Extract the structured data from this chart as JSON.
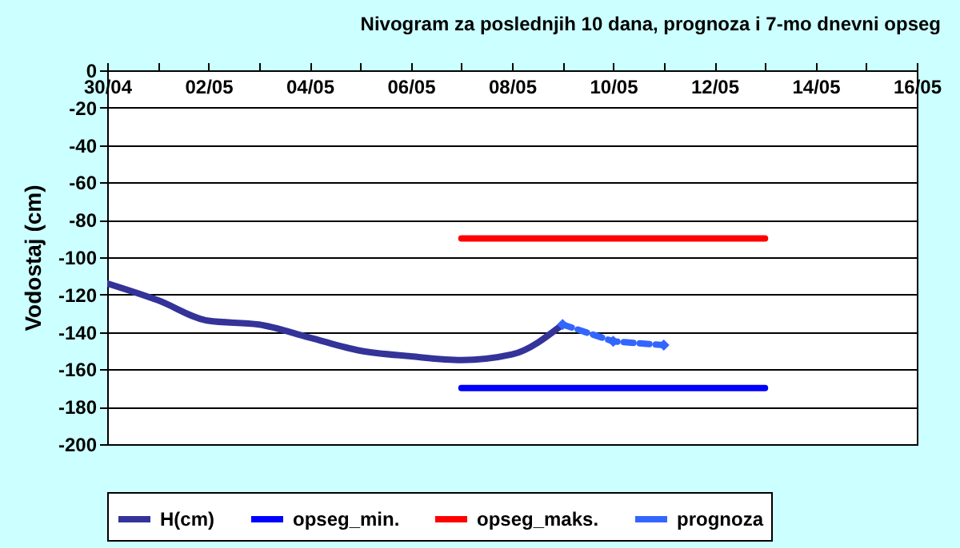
{
  "chart_data": {
    "type": "line",
    "title": "Nivogram za poslednjih 10 dana, prognoza i 7-mo dnevni opseg",
    "ylabel": "Vodostaj (cm)",
    "xlim": [
      "--04-30",
      "--05-16"
    ],
    "xticks": [
      {
        "value": "--04-30",
        "label": "30/04"
      },
      {
        "value": "--05-01",
        "label": null
      },
      {
        "value": "--05-02",
        "label": "02/05"
      },
      {
        "value": "--05-03",
        "label": null
      },
      {
        "value": "--05-04",
        "label": "04/05"
      },
      {
        "value": "--05-05",
        "label": null
      },
      {
        "value": "--05-06",
        "label": "06/05"
      },
      {
        "value": "--05-07",
        "label": null
      },
      {
        "value": "--05-08",
        "label": "08/05"
      },
      {
        "value": "--05-09",
        "label": null
      },
      {
        "value": "--05-10",
        "label": "10/05"
      },
      {
        "value": "--05-11",
        "label": null
      },
      {
        "value": "--05-12",
        "label": "12/05"
      },
      {
        "value": "--05-13",
        "label": null
      },
      {
        "value": "--05-14",
        "label": "14/05"
      },
      {
        "value": "--05-15",
        "label": null
      },
      {
        "value": "--05-16",
        "label": "16/05"
      }
    ],
    "ylim": [
      -200,
      0
    ],
    "yticks": [
      -200,
      -180,
      -160,
      -140,
      -120,
      -100,
      -80,
      -60,
      -40,
      -20,
      0
    ],
    "grid": "y",
    "legend": "bottom",
    "series": [
      {
        "name": "H(cm)",
        "color": "#333399",
        "x": [
          "--04-30",
          "--05-01",
          "--05-02",
          "--05-03",
          "--05-04",
          "--05-05",
          "--05-06",
          "--05-07",
          "--05-08",
          "--05-09"
        ],
        "values": [
          -114,
          -123,
          -134,
          -136,
          -143,
          -150,
          -153,
          -155,
          -152,
          -136
        ]
      },
      {
        "name": "opseg_min.",
        "color": "#0000ff",
        "x": [
          "--05-07",
          "--05-13"
        ],
        "values": [
          -170,
          -170
        ]
      },
      {
        "name": "opseg_maks.",
        "color": "#ff0000",
        "x": [
          "--05-07",
          "--05-13"
        ],
        "values": [
          -90,
          -90
        ]
      },
      {
        "name": "prognoza",
        "color": "#3366ff",
        "x": [
          "--05-09",
          "--05-10",
          "--05-11"
        ],
        "values": [
          -136,
          -145,
          -147
        ],
        "marker": "diamond",
        "line_style": "dashed"
      }
    ]
  }
}
